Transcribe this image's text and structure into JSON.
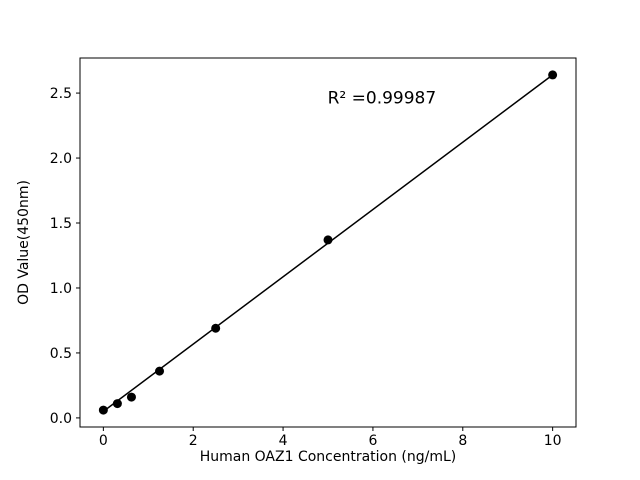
{
  "chart_data": {
    "type": "scatter",
    "title": "",
    "xlabel": "Human OAZ1 Concentration (ng/mL)",
    "ylabel": "OD Value(450nm)",
    "annotation": "R² =0.99987",
    "annotation_xy": [
      6.2,
      2.42
    ],
    "x": [
      0,
      0.3125,
      0.625,
      1.25,
      2.5,
      5,
      10
    ],
    "y": [
      0.06,
      0.11,
      0.16,
      0.36,
      0.69,
      1.37,
      2.64
    ],
    "fit_line": {
      "x": [
        0,
        10
      ],
      "y": [
        0.05,
        2.64
      ]
    },
    "xlim": [
      -0.52,
      10.52
    ],
    "ylim": [
      -0.07,
      2.77
    ],
    "x_ticks": {
      "values": [
        0,
        2,
        4,
        6,
        8,
        10
      ],
      "labels": [
        "0",
        "2",
        "4",
        "6",
        "8",
        "10"
      ]
    },
    "y_ticks": {
      "values": [
        0,
        0.5,
        1.0,
        1.5,
        2.0,
        2.5
      ],
      "labels": [
        "0.0",
        "0.5",
        "1.0",
        "1.5",
        "2.0",
        "2.5"
      ]
    },
    "grid": false,
    "legend": "none",
    "colors": {
      "line": "#000000",
      "marker": "#000000",
      "text": "#000000",
      "background": "#ffffff"
    }
  }
}
